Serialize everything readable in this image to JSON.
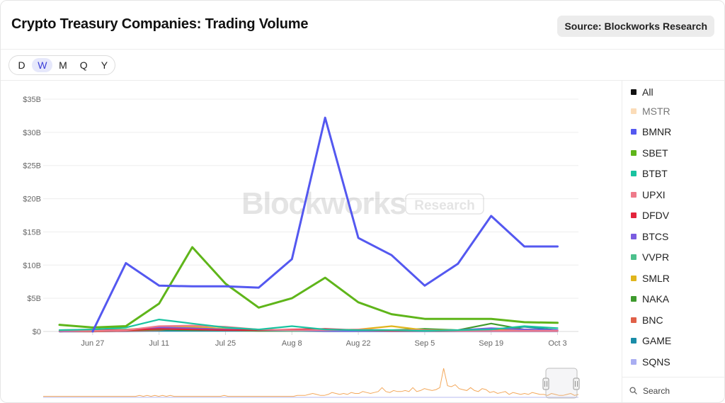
{
  "header": {
    "title": "Crypto Treasury Companies: Trading Volume",
    "source_button": "Source: Blockworks Research"
  },
  "period_selector": {
    "options": [
      "D",
      "W",
      "M",
      "Q",
      "Y"
    ],
    "active": "W"
  },
  "watermark": {
    "brand": "Blockworks",
    "tag": "Research"
  },
  "legend": {
    "items": [
      {
        "label": "All",
        "color": "#111111",
        "dim": false
      },
      {
        "label": "MSTR",
        "color": "#fbdcb8",
        "dim": true
      },
      {
        "label": "BMNR",
        "color": "#5458f0",
        "dim": false
      },
      {
        "label": "SBET",
        "color": "#5fb51a",
        "dim": false
      },
      {
        "label": "BTBT",
        "color": "#19c3a0",
        "dim": false
      },
      {
        "label": "UPXI",
        "color": "#ee7a8a",
        "dim": false
      },
      {
        "label": "DFDV",
        "color": "#e3243b",
        "dim": false
      },
      {
        "label": "BTCS",
        "color": "#7a5ce0",
        "dim": false
      },
      {
        "label": "VVPR",
        "color": "#4cc08c",
        "dim": false
      },
      {
        "label": "SMLR",
        "color": "#e0b51c",
        "dim": false
      },
      {
        "label": "NAKA",
        "color": "#3e9a2e",
        "dim": false
      },
      {
        "label": "BNC",
        "color": "#e06048",
        "dim": false
      },
      {
        "label": "GAME",
        "color": "#1a8ca8",
        "dim": false
      },
      {
        "label": "SQNS",
        "color": "#a9aef2",
        "dim": false
      }
    ],
    "search_label": "Search"
  },
  "chart_data": {
    "type": "line",
    "title": "Crypto Treasury Companies: Trading Volume",
    "xlabel": "",
    "ylabel": "",
    "x": [
      "Jun 20",
      "Jun 27",
      "Jul 4",
      "Jul 11",
      "Jul 18",
      "Jul 25",
      "Aug 1",
      "Aug 8",
      "Aug 15",
      "Aug 22",
      "Aug 29",
      "Sep 5",
      "Sep 12",
      "Sep 19",
      "Sep 26",
      "Oct 3"
    ],
    "x_tick_labels": [
      "Jun 27",
      "Jul 11",
      "Jul 25",
      "Aug 8",
      "Aug 22",
      "Sep 5",
      "Sep 19",
      "Oct 3"
    ],
    "y_tick_labels": [
      "$0",
      "$5B",
      "$10B",
      "$15B",
      "$20B",
      "$25B",
      "$30B",
      "$35B"
    ],
    "ylim": [
      0,
      35
    ],
    "y_unit": "B",
    "grid": true,
    "legend_position": "right",
    "series": [
      {
        "name": "BMNR",
        "color": "#5458f0",
        "values": [
          null,
          0.0,
          10.3,
          6.9,
          6.8,
          6.8,
          6.6,
          10.9,
          32.2,
          14.1,
          11.5,
          6.9,
          10.2,
          17.4,
          12.8,
          12.8
        ]
      },
      {
        "name": "SBET",
        "color": "#5fb51a",
        "values": [
          1.0,
          0.6,
          0.8,
          4.2,
          12.7,
          7.2,
          3.6,
          5.0,
          8.1,
          4.4,
          2.6,
          1.9,
          1.9,
          1.9,
          1.4,
          1.3
        ]
      },
      {
        "name": "BTBT",
        "color": "#19c3a0",
        "values": [
          0.2,
          0.3,
          0.6,
          1.8,
          1.2,
          0.6,
          0.3,
          0.8,
          0.3,
          0.2,
          0.2,
          0.1,
          0.2,
          0.3,
          0.8,
          0.5
        ]
      },
      {
        "name": "UPXI",
        "color": "#ee7a8a",
        "values": [
          0.1,
          0.1,
          0.2,
          0.8,
          0.9,
          0.7,
          0.3,
          0.2,
          0.2,
          0.3,
          0.2,
          0.2,
          0.1,
          0.1,
          0.1,
          0.1
        ]
      },
      {
        "name": "DFDV",
        "color": "#e3243b",
        "values": [
          0.1,
          0.2,
          0.2,
          0.4,
          0.3,
          0.2,
          0.2,
          0.3,
          0.4,
          0.2,
          0.1,
          0.1,
          0.1,
          0.1,
          0.1,
          0.1
        ]
      },
      {
        "name": "BTCS",
        "color": "#7a5ce0",
        "values": [
          0.0,
          0.1,
          0.2,
          0.6,
          0.5,
          0.3,
          0.2,
          0.2,
          0.1,
          0.1,
          0.1,
          0.1,
          0.2,
          0.5,
          0.3,
          0.2
        ]
      },
      {
        "name": "VVPR",
        "color": "#4cc08c",
        "values": [
          0.1,
          0.2,
          0.3,
          0.4,
          0.3,
          0.2,
          0.2,
          0.1,
          0.1,
          0.1,
          0.1,
          0.1,
          0.1,
          0.1,
          0.1,
          0.1
        ]
      },
      {
        "name": "SMLR",
        "color": "#e0b51c",
        "values": [
          0.2,
          0.3,
          0.3,
          0.6,
          0.7,
          0.4,
          0.3,
          0.2,
          0.2,
          0.3,
          0.8,
          0.2,
          0.2,
          0.4,
          0.3,
          0.2
        ]
      },
      {
        "name": "NAKA",
        "color": "#3e9a2e",
        "values": [
          0.0,
          0.1,
          0.2,
          0.3,
          0.2,
          0.2,
          0.1,
          0.1,
          0.1,
          0.1,
          0.2,
          0.4,
          0.2,
          1.2,
          0.3,
          0.2
        ]
      },
      {
        "name": "BNC",
        "color": "#e06048",
        "values": [
          0.0,
          0.0,
          0.1,
          0.2,
          0.6,
          0.3,
          0.1,
          0.1,
          0.2,
          0.2,
          0.1,
          0.1,
          0.1,
          0.2,
          0.1,
          0.1
        ]
      },
      {
        "name": "GAME",
        "color": "#1a8ca8",
        "values": [
          0.0,
          0.0,
          0.1,
          0.1,
          0.1,
          0.1,
          0.1,
          0.1,
          0.1,
          0.1,
          0.1,
          0.1,
          0.1,
          0.3,
          0.7,
          0.2
        ]
      },
      {
        "name": "SQNS",
        "color": "#a9aef2",
        "values": [
          0.0,
          0.0,
          0.0,
          0.1,
          0.1,
          0.1,
          0.1,
          0.1,
          0.0,
          0.0,
          0.0,
          0.0,
          0.0,
          0.0,
          0.0,
          0.0
        ]
      }
    ],
    "navigator": {
      "series_color": "#f3a85b",
      "values": [
        0.1,
        0.1,
        0.1,
        0.1,
        0.1,
        0.1,
        0.1,
        0.1,
        0.1,
        0.1,
        0.1,
        0.1,
        0.1,
        0.1,
        0.1,
        0.1,
        0.1,
        0.1,
        0.1,
        0.1,
        0.1,
        0.1,
        0.1,
        0.1,
        0.1,
        0.2,
        0.1,
        0.2,
        0.1,
        0.2,
        0.1,
        0.2,
        0.1,
        0.2,
        0.1,
        0.1,
        0.1,
        0.1,
        0.1,
        0.1,
        0.1,
        0.1,
        0.1,
        0.1,
        0.1,
        0.1,
        0.1,
        0.2,
        0.1,
        0.1,
        0.1,
        0.1,
        0.1,
        0.1,
        0.1,
        0.1,
        0.1,
        0.1,
        0.1,
        0.1,
        0.1,
        0.1,
        0.1,
        0.1,
        0.1,
        0.1,
        0.2,
        0.2,
        0.2,
        0.3,
        0.4,
        0.3,
        0.2,
        0.2,
        0.3,
        0.5,
        0.4,
        0.3,
        0.4,
        0.3,
        0.5,
        0.4,
        0.4,
        0.6,
        0.5,
        0.4,
        0.5,
        0.6,
        1.0,
        0.6,
        0.5,
        0.7,
        0.6,
        0.6,
        0.7,
        0.6,
        1.0,
        0.6,
        0.7,
        0.9,
        0.8,
        0.7,
        0.8,
        1.0,
        3.0,
        1.2,
        1.1,
        1.3,
        0.9,
        0.8,
        0.7,
        1.0,
        0.7,
        0.6,
        0.9,
        0.8,
        0.5,
        0.6,
        0.4,
        0.5,
        0.6,
        0.3,
        0.5,
        0.4,
        0.3,
        0.4,
        0.3,
        0.5,
        0.4,
        0.3,
        0.3,
        0.2,
        0.4,
        0.3,
        0.2,
        0.2,
        0.3,
        0.4,
        0.2,
        0.3
      ]
    }
  }
}
